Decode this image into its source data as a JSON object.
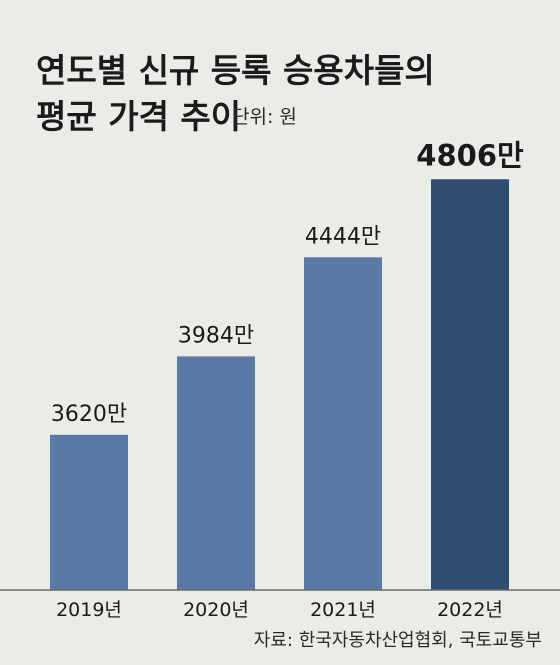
{
  "chart_data": {
    "type": "bar",
    "title_lines": [
      "연도별 신규 등록 승용차들의",
      "평균 가격 추이"
    ],
    "unit_label": "단위: 원",
    "categories": [
      "2019년",
      "2020년",
      "2021년",
      "2022년"
    ],
    "values": [
      3620,
      3984,
      4444,
      4806
    ],
    "value_labels": [
      "3620만",
      "3984만",
      "4444만",
      "4806만"
    ],
    "ylim": [
      2900,
      4900
    ],
    "grid": false,
    "legend": "none",
    "source": "자료: 한국자동차산업협회, 국토교통부"
  },
  "colors": {
    "bar": "#5a79a4",
    "bar_highlight": "#2f4e72",
    "background": "#ebebe7",
    "text": "#1b1b1b"
  }
}
